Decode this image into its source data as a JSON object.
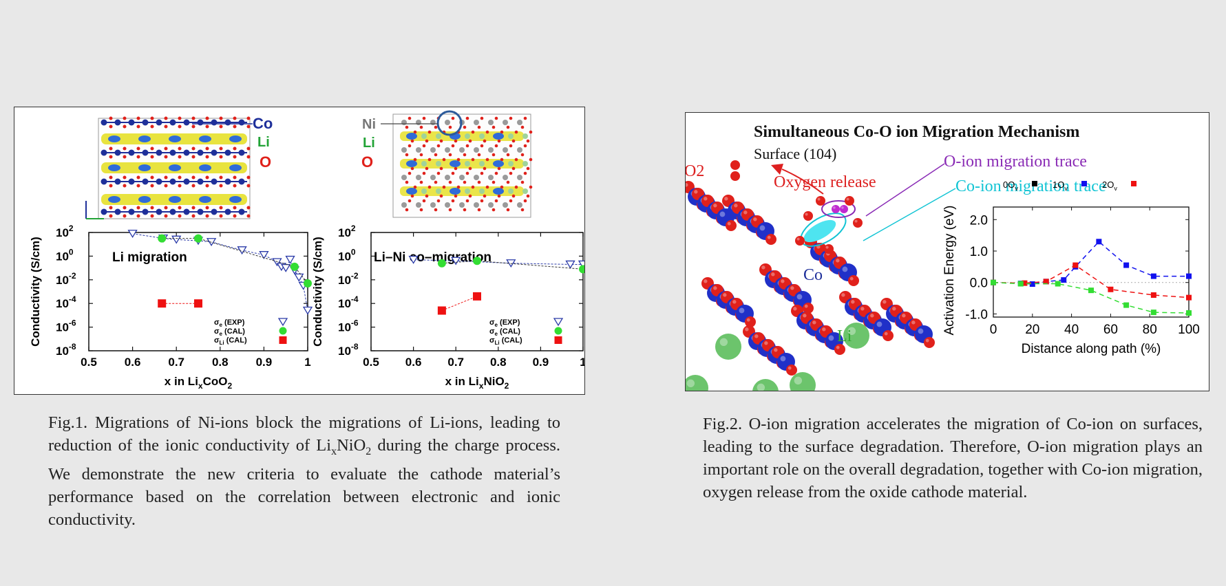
{
  "fig1": {
    "crystal_left_labels": [
      "Co",
      "Li",
      "O"
    ],
    "crystal_right_labels": [
      "Ni",
      "Li",
      "O"
    ],
    "crystal_colors": {
      "co": "#1e2f9a",
      "li": "#22a336",
      "o": "#e0211b",
      "ni": "#9a9a9a",
      "isosurface": "#e6e02a"
    },
    "colors": {
      "exp": "#2a3aa8",
      "cal_e": "#33dd33",
      "cal_li": "#ee1111"
    },
    "chart_data": [
      {
        "type": "scatter",
        "title": "Li migration",
        "xlabel": "x in LixCoO2",
        "ylabel": "Conductivity (S/cm)",
        "xlim": [
          0.5,
          1.0
        ],
        "yscale": "log",
        "ylim_exp": [
          -8,
          2
        ],
        "x_ticks": [
          "0.5",
          "0.6",
          "0.7",
          "0.8",
          "0.9",
          "1"
        ],
        "y_tick_exps": [
          2,
          0,
          -2,
          -4,
          -6,
          -8
        ],
        "legend": [
          "σe (EXP)",
          "σe (CAL)",
          "σLi (CAL)"
        ],
        "series": [
          {
            "name": "σe (EXP)",
            "marker": "triangle-down",
            "x": [
              0.6,
              0.67,
              0.7,
              0.75,
              0.78,
              0.85,
              0.9,
              0.93,
              0.94,
              0.95,
              0.96,
              0.97,
              0.98,
              0.99,
              1.0
            ],
            "y_exp": [
              1.9,
              1.5,
              1.4,
              1.3,
              1.2,
              0.5,
              0.1,
              -0.5,
              -0.9,
              -1.0,
              -0.3,
              -1.2,
              -1.8,
              -2.5,
              -4.6
            ]
          },
          {
            "name": "σe (CAL)",
            "marker": "circle",
            "x": [
              0.667,
              0.75,
              0.97,
              1.0
            ],
            "y_exp": [
              1.5,
              1.5,
              -0.9,
              -2.3
            ]
          },
          {
            "name": "σLi (CAL)",
            "marker": "square",
            "x": [
              0.667,
              0.75
            ],
            "y_exp": [
              -4.0,
              -4.0
            ]
          }
        ]
      },
      {
        "type": "scatter",
        "title": "Li–Ni co–migration",
        "xlabel": "x in LixNiO2",
        "ylabel": "Conductivity (S/cm)",
        "xlim": [
          0.5,
          1.0
        ],
        "yscale": "log",
        "ylim_exp": [
          -8,
          2
        ],
        "x_ticks": [
          "0.5",
          "0.6",
          "0.7",
          "0.8",
          "0.9",
          "1"
        ],
        "y_tick_exps": [
          2,
          0,
          -2,
          -4,
          -6,
          -8
        ],
        "legend": [
          "σe (EXP)",
          "σe (CAL)",
          "σLi (CAL)"
        ],
        "series": [
          {
            "name": "σe (EXP)",
            "marker": "triangle-down",
            "x": [
              0.6,
              0.7,
              0.83,
              0.97,
              1.0
            ],
            "y_exp": [
              -0.3,
              -0.4,
              -0.6,
              -0.7,
              -0.7
            ]
          },
          {
            "name": "σe (CAL)",
            "marker": "circle",
            "x": [
              0.667,
              0.75,
              1.0
            ],
            "y_exp": [
              -0.6,
              -0.4,
              -1.1
            ]
          },
          {
            "name": "σLi (CAL)",
            "marker": "square",
            "x": [
              0.667,
              0.75
            ],
            "y_exp": [
              -4.6,
              -3.4
            ]
          }
        ]
      }
    ]
  },
  "fig2": {
    "title": "Simultaneous Co-O ion Migration Mechanism",
    "surface": "Surface (104)",
    "o2_label": "O2",
    "oxygen_release": "Oxygen release",
    "o_trace": "O-ion migration trace",
    "co_trace": "Co-ion migration trace",
    "co_label": "Co",
    "li_label": "Li",
    "colors": {
      "title": "#111111",
      "oxygen_release": "#dd2020",
      "o_trace": "#8a2bb5",
      "co_trace": "#11c4d4",
      "co_label": "#1e2f9a",
      "li_label": "#33aa33",
      "atom_o": "#e0211b",
      "atom_co": "#2030c8",
      "atom_li": "#6cc46c"
    },
    "chart_data": {
      "type": "line",
      "xlabel": "Distance along path (%)",
      "ylabel": "Activation Energy (eV)",
      "xlim": [
        0,
        100
      ],
      "ylim": [
        -1.1,
        2.4
      ],
      "x_ticks": [
        "0",
        "20",
        "40",
        "60",
        "80",
        "100"
      ],
      "y_ticks": [
        "2.0",
        "1.0",
        "0.0",
        "-1.0"
      ],
      "series": [
        {
          "name": "0Ov",
          "color": "#000000",
          "x": [],
          "y": []
        },
        {
          "name": "1Ov",
          "color": "#1111ee",
          "x": [
            0,
            14,
            20,
            27,
            36,
            42,
            54,
            68,
            82,
            100
          ],
          "y": [
            0.0,
            -0.03,
            -0.05,
            0.03,
            0.08,
            0.5,
            1.3,
            0.55,
            0.2,
            0.2
          ]
        },
        {
          "name": "2Ov",
          "color": "#ee1111",
          "x": [
            0,
            14,
            20,
            27,
            36,
            42,
            54,
            68,
            82,
            100
          ],
          "y": [
            0.0,
            -0.03,
            -0.05,
            0.03,
            0.08,
            0.5,
            1.3,
            0.55,
            0.2,
            0.2
          ]
        },
        {
          "name": "",
          "color": "#ee1111",
          "x": [
            0,
            16,
            27,
            42,
            60,
            82,
            100
          ],
          "y": [
            0.0,
            -0.02,
            0.03,
            0.55,
            -0.22,
            -0.4,
            -0.48
          ]
        },
        {
          "name": "",
          "color": "#33dd33",
          "x": [
            0,
            14,
            33,
            50,
            68,
            82,
            100
          ],
          "y": [
            0.0,
            -0.04,
            -0.04,
            -0.25,
            -0.72,
            -0.95,
            -0.97
          ]
        }
      ]
    }
  },
  "captions": {
    "fig1": "Fig.1. Migrations of Ni-ions block the migrations of Li-ions, leading to reduction of the ionic conductivity of LixNiO2 during the charge process. We demonstrate the new criteria to evaluate the cathode material’s performance based on the correlation between electronic and ionic conductivity.",
    "fig2": "Fig.2. O-ion migration accelerates the migration of Co-ion on surfaces, leading to the surface degradation. Therefore, O-ion migration plays an important role on the overall degradation, together with Co-ion migration, oxygen release from the oxide cathode material."
  }
}
